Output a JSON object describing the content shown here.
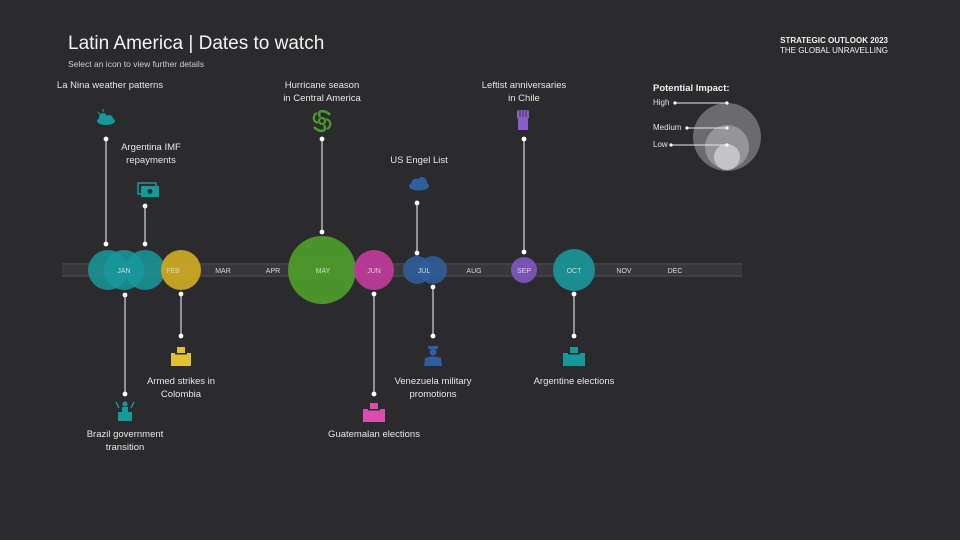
{
  "header": {
    "title": "Latin America | Dates to watch",
    "subtitle": "Select an icon to view further details",
    "brand_line1": "STRATEGIC OUTLOOK 2023",
    "brand_line2": "THE GLOBAL UNRAVELLING"
  },
  "months": [
    "JAN",
    "FEB",
    "MAR",
    "APR",
    "MAY",
    "JUN",
    "JUL",
    "AUG",
    "SEP",
    "OCT",
    "NOV",
    "DEC"
  ],
  "legend": {
    "title": "Potential Impact:",
    "high": "High",
    "medium": "Medium",
    "low": "Low"
  },
  "events": {
    "la_nina": {
      "label_line1": "La Nina weather patterns",
      "label_line2": "",
      "month": "JAN",
      "impact": "Medium",
      "color": "#17989a",
      "icon": "cloud-sun-icon"
    },
    "argentina_imf": {
      "label_line1": "Argentina IMF",
      "label_line2": "repayments",
      "month": "JAN",
      "impact": "Medium",
      "color": "#17989a",
      "icon": "money-icon"
    },
    "brazil_transition": {
      "label_line1": "Brazil government",
      "label_line2": "transition",
      "month": "JAN",
      "impact": "Medium",
      "color": "#17989a",
      "icon": "speaker-podium-icon"
    },
    "armed_strikes": {
      "label_line1": "Armed strikes in",
      "label_line2": "Colombia",
      "month": "FEB",
      "impact": "Medium",
      "color": "#c9a722",
      "icon": "ballot-box-icon"
    },
    "hurricane": {
      "label_line1": "Hurricane season",
      "label_line2": "in Central America",
      "month": "MAY",
      "impact": "High",
      "color": "#4c9a2a",
      "icon": "hurricane-icon"
    },
    "guatemala_elections": {
      "label_line1": "Guatemalan elections",
      "label_line2": "",
      "month": "JUN",
      "impact": "Medium",
      "color": "#c43a9c",
      "icon": "ballot-box-icon"
    },
    "us_engel": {
      "label_line1": "US Engel List",
      "label_line2": "",
      "month": "JUL",
      "impact": "Low",
      "color": "#2f5f9e",
      "icon": "cloud-icon"
    },
    "venezuela_promotions": {
      "label_line1": "Venezuela military",
      "label_line2": "promotions",
      "month": "JUL",
      "impact": "Low",
      "color": "#2f5f9e",
      "icon": "soldier-icon"
    },
    "leftist_anniversaries": {
      "label_line1": "Leftist anniversaries",
      "label_line2": "in Chile",
      "month": "SEP",
      "impact": "Low",
      "color": "#7d54b8",
      "icon": "raised-fist-icon"
    },
    "argentine_elections": {
      "label_line1": "Argentine elections",
      "label_line2": "",
      "month": "OCT",
      "impact": "Medium",
      "color": "#17989a",
      "icon": "ballot-box-icon"
    }
  }
}
